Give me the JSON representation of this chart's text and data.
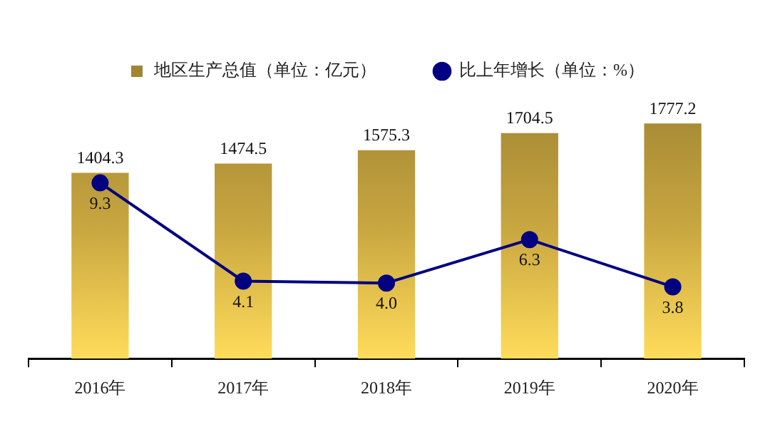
{
  "chart_data": {
    "type": "bar",
    "categories": [
      "2016年",
      "2017年",
      "2018年",
      "2019年",
      "2020年"
    ],
    "series": [
      {
        "name": "地区生产总值（单位：亿元）",
        "color": "#c8a640",
        "values": [
          1404.3,
          1474.5,
          1575.3,
          1704.5,
          1777.2
        ]
      },
      {
        "name": "比上年增长（单位：%）",
        "type": "line",
        "axis": "y2",
        "color": "#000080",
        "values": [
          9.3,
          4.1,
          4.0,
          6.3,
          3.8
        ],
        "value_labels": [
          "9.3",
          "4.1",
          "4.0",
          "6.3",
          "3.8"
        ]
      }
    ],
    "data_labels": true,
    "legend": "top",
    "marker": "circle",
    "grid": false,
    "tick_labels": "x"
  }
}
